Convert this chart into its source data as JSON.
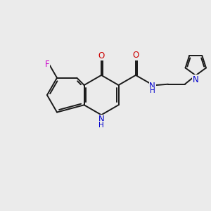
{
  "bg_color": "#ebebeb",
  "bond_color": "#1a1a1a",
  "bond_width": 1.4,
  "atom_colors": {
    "N": "#0000cc",
    "O": "#cc0000",
    "F": "#cc00cc"
  },
  "font_size": 8.5,
  "fig_w": 3.0,
  "fig_h": 3.0,
  "dpi": 100,
  "xlim": [
    0,
    10
  ],
  "ylim": [
    1,
    9
  ]
}
